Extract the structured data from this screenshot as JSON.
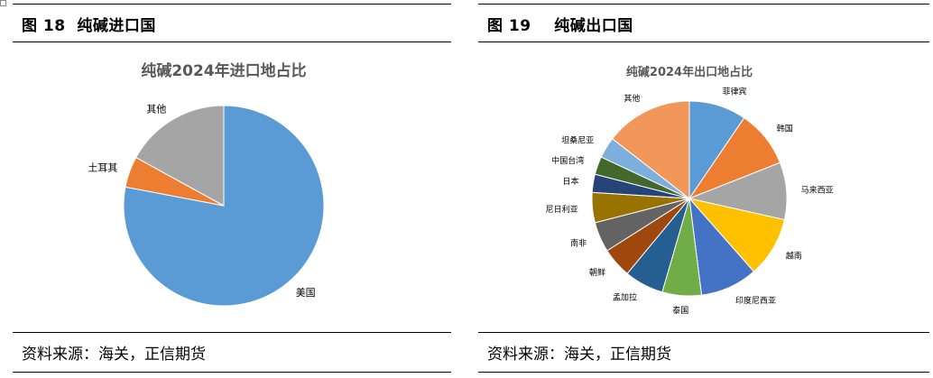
{
  "left": {
    "figure_title": "图 18  纯碱进口国",
    "source": "资料来源：海关，正信期货"
  },
  "right": {
    "figure_title": "图 19    纯碱出口国",
    "source": "资料来源：海关，正信期货"
  },
  "chart_data": [
    {
      "type": "pie",
      "title": "纯碱2024年进口地占比",
      "slices": [
        {
          "label": "美国",
          "value": 78,
          "color": "#5B9BD5"
        },
        {
          "label": "土耳其",
          "value": 5,
          "color": "#ED7D31"
        },
        {
          "label": "其他",
          "value": 17,
          "color": "#A5A5A5"
        }
      ]
    },
    {
      "type": "pie",
      "title": "纯碱2024年出口地占比",
      "slices": [
        {
          "label": "菲律宾",
          "value": 9.5,
          "color": "#5B9BD5"
        },
        {
          "label": "韩国",
          "value": 9.5,
          "color": "#ED7D31"
        },
        {
          "label": "马来西亚",
          "value": 9.5,
          "color": "#A5A5A5"
        },
        {
          "label": "越南",
          "value": 10,
          "color": "#FFC000"
        },
        {
          "label": "印度尼西亚",
          "value": 9.5,
          "color": "#4472C4"
        },
        {
          "label": "泰国",
          "value": 6.5,
          "color": "#70AD47"
        },
        {
          "label": "孟加拉",
          "value": 6.5,
          "color": "#255E91"
        },
        {
          "label": "朝鲜",
          "value": 5,
          "color": "#9E480E"
        },
        {
          "label": "南非",
          "value": 5,
          "color": "#636363"
        },
        {
          "label": "尼日利亚",
          "value": 5,
          "color": "#997300"
        },
        {
          "label": "日本",
          "value": 3,
          "color": "#264478"
        },
        {
          "label": "中国台湾",
          "value": 3,
          "color": "#43682B"
        },
        {
          "label": "坦桑尼亚",
          "value": 3.5,
          "color": "#7CAFDD"
        },
        {
          "label": "其他",
          "value": 14.5,
          "color": "#F1975A"
        }
      ]
    }
  ]
}
